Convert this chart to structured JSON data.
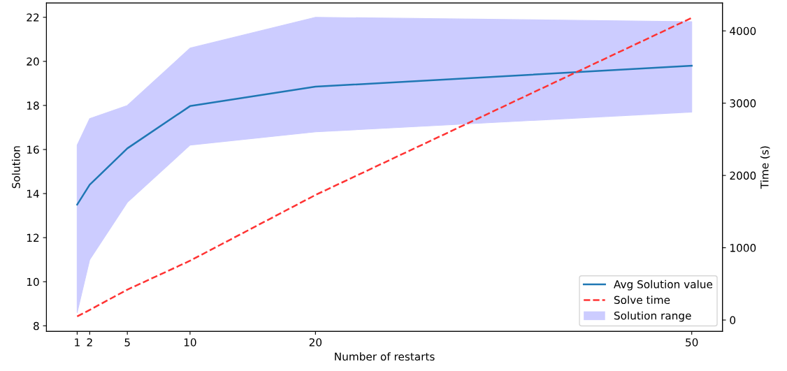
{
  "chart_data": {
    "type": "line",
    "xlabel": "Number of restarts",
    "ylabel": "Solution",
    "y2label": "Time (s)",
    "x": [
      1,
      2,
      5,
      10,
      20,
      50
    ],
    "xlim": [
      -1.45,
      52.45
    ],
    "xticks": [
      1,
      2,
      5,
      10,
      20,
      50
    ],
    "ylim": [
      7.75,
      22.65
    ],
    "yticks": [
      8,
      10,
      12,
      14,
      16,
      18,
      20,
      22
    ],
    "y2lim": [
      -156,
      4386
    ],
    "y2ticks": [
      0,
      1000,
      2000,
      3000,
      4000
    ],
    "series": [
      {
        "name": "Avg Solution value",
        "color": "#1f77b4",
        "line_style": "solid",
        "values": [
          13.5,
          14.4,
          16.05,
          17.97,
          18.85,
          19.8
        ],
        "lower": [
          8.6,
          11.0,
          13.6,
          16.2,
          16.8,
          17.7
        ],
        "upper": [
          16.2,
          17.4,
          18.0,
          20.6,
          22.0,
          21.8
        ]
      },
      {
        "name": "Solve time",
        "axis": "y2",
        "color": "#ff3333",
        "line_style": "dashed",
        "values": [
          50,
          140,
          420,
          820,
          1730,
          4180
        ]
      }
    ],
    "annotations": [
      "Solution range"
    ],
    "legend": "bottom right",
    "grid": false,
    "marker": "none"
  }
}
